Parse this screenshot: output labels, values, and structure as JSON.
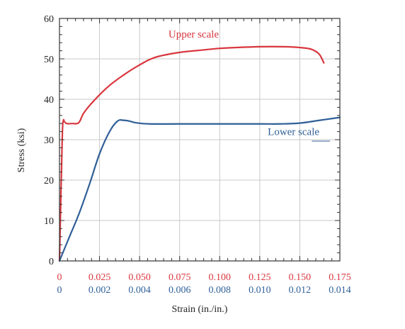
{
  "chart_data": {
    "type": "line",
    "title": "",
    "ylabel": "Stress (ksi)",
    "xlabel": "Strain (in./in.)",
    "ylim": [
      0,
      60
    ],
    "yticks": [
      "0",
      "10",
      "20",
      "30",
      "40",
      "50",
      "60"
    ],
    "grid": true,
    "x_axes": [
      {
        "name": "upper",
        "range": [
          0,
          0.175
        ],
        "ticks": [
          "0",
          "0.025",
          "0.050",
          "0.075",
          "0.100",
          "0.125",
          "0.150",
          "0.175"
        ],
        "color": "#d9363e"
      },
      {
        "name": "lower",
        "range": [
          0,
          0.014
        ],
        "ticks": [
          "0",
          "0.002",
          "0.004",
          "0.006",
          "0.008",
          "0.010",
          "0.012",
          "0.014"
        ],
        "color": "#2f5f97"
      }
    ],
    "series": [
      {
        "name": "Upper scale",
        "axis": "upper",
        "color": "#d9363e",
        "points": [
          [
            0,
            0
          ],
          [
            0.0017,
            30
          ],
          [
            0.0024,
            34.6
          ],
          [
            0.003,
            34.5
          ],
          [
            0.0045,
            34.0
          ],
          [
            0.008,
            34.0
          ],
          [
            0.012,
            34.2
          ],
          [
            0.015,
            36.5
          ],
          [
            0.02,
            39
          ],
          [
            0.03,
            43
          ],
          [
            0.04,
            46
          ],
          [
            0.05,
            48.5
          ],
          [
            0.06,
            50.4
          ],
          [
            0.075,
            51.6
          ],
          [
            0.09,
            52.2
          ],
          [
            0.1,
            52.6
          ],
          [
            0.11,
            52.8
          ],
          [
            0.125,
            53.0
          ],
          [
            0.14,
            53.0
          ],
          [
            0.15,
            52.8
          ],
          [
            0.157,
            52.4
          ],
          [
            0.162,
            51.2
          ],
          [
            0.165,
            49
          ]
        ]
      },
      {
        "name": "Lower scale",
        "axis": "lower",
        "color": "#2f5f97",
        "points": [
          [
            0,
            0
          ],
          [
            0.0005,
            6
          ],
          [
            0.001,
            12
          ],
          [
            0.0015,
            19
          ],
          [
            0.002,
            26.5
          ],
          [
            0.0025,
            32
          ],
          [
            0.0029,
            34.6
          ],
          [
            0.0032,
            34.8
          ],
          [
            0.0035,
            34.6
          ],
          [
            0.0038,
            34.2
          ],
          [
            0.0045,
            33.9
          ],
          [
            0.006,
            33.9
          ],
          [
            0.008,
            33.9
          ],
          [
            0.01,
            33.9
          ],
          [
            0.011,
            33.9
          ],
          [
            0.012,
            34.1
          ],
          [
            0.013,
            34.8
          ],
          [
            0.014,
            35.5
          ]
        ]
      }
    ],
    "annotations": [
      {
        "text": "Upper scale",
        "color": "#d9363e",
        "at": [
          0.068,
          55.3
        ],
        "axis": "upper"
      },
      {
        "text": "Lower scale",
        "color": "#2f5f97",
        "at": [
          0.0104,
          31.1
        ],
        "axis": "lower",
        "leader_to": [
          0.0126,
          30.0
        ]
      }
    ]
  }
}
